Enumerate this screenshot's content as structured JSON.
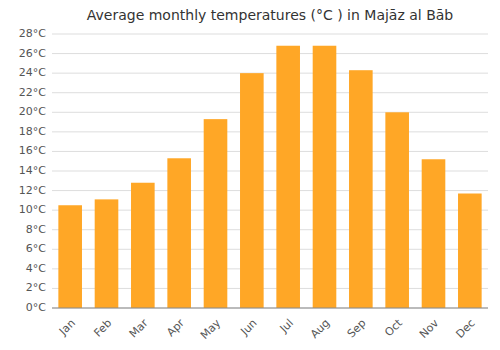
{
  "chart_data": {
    "type": "bar",
    "title": "Average monthly temperatures (°C ) in Majāz al Bāb",
    "categories": [
      "Jan",
      "Feb",
      "Mar",
      "Apr",
      "May",
      "Jun",
      "Jul",
      "Aug",
      "Sep",
      "Oct",
      "Nov",
      "Dec"
    ],
    "values": [
      10.5,
      11.1,
      12.8,
      15.3,
      19.3,
      24.0,
      26.8,
      26.8,
      24.3,
      20.0,
      15.2,
      11.7
    ],
    "color": "#FFA726",
    "ylim": [
      0,
      28
    ],
    "yticks": [
      {
        "value": 0,
        "label": "0°C"
      },
      {
        "value": 2,
        "label": "2°C"
      },
      {
        "value": 4,
        "label": "4°C"
      },
      {
        "value": 6,
        "label": "6°C"
      },
      {
        "value": 8,
        "label": "8°C"
      },
      {
        "value": 10,
        "label": "10°C"
      },
      {
        "value": 12,
        "label": "12°C"
      },
      {
        "value": 14,
        "label": "14°C"
      },
      {
        "value": 16,
        "label": "16°C"
      },
      {
        "value": 18,
        "label": "18°C"
      },
      {
        "value": 20,
        "label": "20°C"
      },
      {
        "value": 22,
        "label": "22°C"
      },
      {
        "value": 24,
        "label": "24°C"
      },
      {
        "value": 26,
        "label": "26°C"
      },
      {
        "value": 28,
        "label": "28°C"
      }
    ],
    "grid": true
  }
}
